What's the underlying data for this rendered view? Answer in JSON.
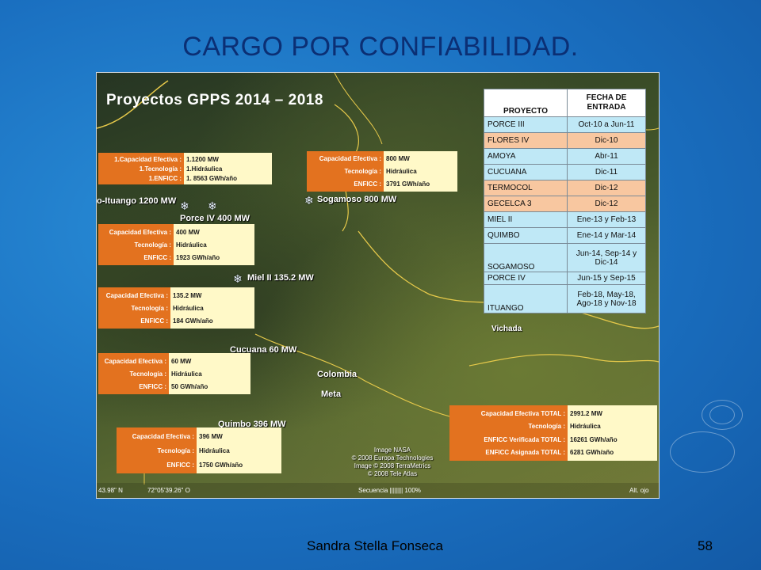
{
  "slide": {
    "title": "CARGO POR CONFIABILIDAD.",
    "author": "Sandra Stella Fonseca",
    "page_number": "58"
  },
  "map": {
    "heading": "Proyectos GPPS  2014 – 2018",
    "places": {
      "ituango": "o-Ituango 1200 MW",
      "porce_iv": "Porce IV 400 MW",
      "sogamoso": "Sogamoso 800 MW",
      "miel_ii": "Miel II 135.2 MW",
      "cucuana": "Cucuana 60 MW",
      "colombia": "Colombia",
      "meta": "Meta",
      "quimbo": "Quimbo 396 MW",
      "vichada": "Vichada"
    },
    "credits": [
      "Image NASA",
      "© 2008 Europa Technologies",
      "Image © 2008 TerraMetrics",
      "© 2008 Tele Atlas"
    ],
    "coord_left": "43.98\" N",
    "coord_mid": "72°05'39.26\" O",
    "coord_scale": "Secuencia |||||||| 100%",
    "coord_right": "Alt. ojo"
  },
  "cards": {
    "ituango": {
      "labels": [
        "1.Capacidad Efectiva :",
        "1.Tecnología :",
        "1.ENFICC :"
      ],
      "values": [
        "1.1200 MW",
        "1.Hidráulica",
        "1. 8563 GWh/año"
      ]
    },
    "sogamoso": {
      "labels": [
        "Capacidad Efectiva :",
        "Tecnología :",
        "ENFICC :"
      ],
      "values": [
        "800 MW",
        "Hidráulica",
        "3791 GWh/año"
      ]
    },
    "porce_iv": {
      "labels": [
        "Capacidad Efectiva :",
        "Tecnología :",
        "ENFICC :"
      ],
      "values": [
        "400 MW",
        "Hidráulica",
        "1923 GWh/año"
      ]
    },
    "miel_ii": {
      "labels": [
        "Capacidad Efectiva :",
        "Tecnología :",
        "ENFICC :"
      ],
      "values": [
        "135.2 MW",
        "Hidráulica",
        "184 GWh/año"
      ]
    },
    "cucuana": {
      "labels": [
        "Capacidad Efectiva :",
        "Tecnología :",
        "ENFICC :"
      ],
      "values": [
        "60 MW",
        "Hidráulica",
        "50 GWh/año"
      ]
    },
    "quimbo": {
      "labels": [
        "Capacidad Efectiva :",
        "Tecnología :",
        "ENFICC :"
      ],
      "values": [
        "396 MW",
        "Hidráulica",
        "1750 GWh/año"
      ]
    },
    "total": {
      "labels": [
        "Capacidad Efectiva TOTAL :",
        "Tecnología :",
        "ENFICC Verificada TOTAL :",
        "ENFICC Asignada TOTAL :"
      ],
      "values": [
        "2991.2 MW",
        "Hidráulica",
        "16261 GWh/año",
        "6281 GWh/año"
      ]
    }
  },
  "projects": {
    "headers": [
      "PROYECTO",
      "FECHA DE ENTRADA"
    ],
    "rows": [
      {
        "name": "PORCE III",
        "date": "Oct-10 a Jun-11",
        "color": "#bfe8f6"
      },
      {
        "name": "FLORES IV",
        "date": "Dic-10",
        "color": "#f8c7a0"
      },
      {
        "name": "AMOYA",
        "date": "Abr-11",
        "color": "#bfe8f6"
      },
      {
        "name": "CUCUANA",
        "date": "Dic-11",
        "color": "#bfe8f6"
      },
      {
        "name": "TERMOCOL",
        "date": "Dic-12",
        "color": "#f8c7a0"
      },
      {
        "name": "GECELCA 3",
        "date": "Dic-12",
        "color": "#f8c7a0"
      },
      {
        "name": "MIEL II",
        "date": "Ene-13 y Feb-13",
        "color": "#bfe8f6"
      },
      {
        "name": "QUIMBO",
        "date": "Ene-14 y Mar-14",
        "color": "#bfe8f6"
      },
      {
        "name": "SOGAMOSO",
        "date": "Jun-14, Sep-14 y Dic-14",
        "color": "#bfe8f6"
      },
      {
        "name": "PORCE IV",
        "date": "Jun-15 y Sep-15",
        "color": "#bfe8f6"
      },
      {
        "name": "ITUANGO",
        "date": "Feb-18, May-18, Ago-18 y Nov-18",
        "color": "#bfe8f6"
      }
    ]
  }
}
